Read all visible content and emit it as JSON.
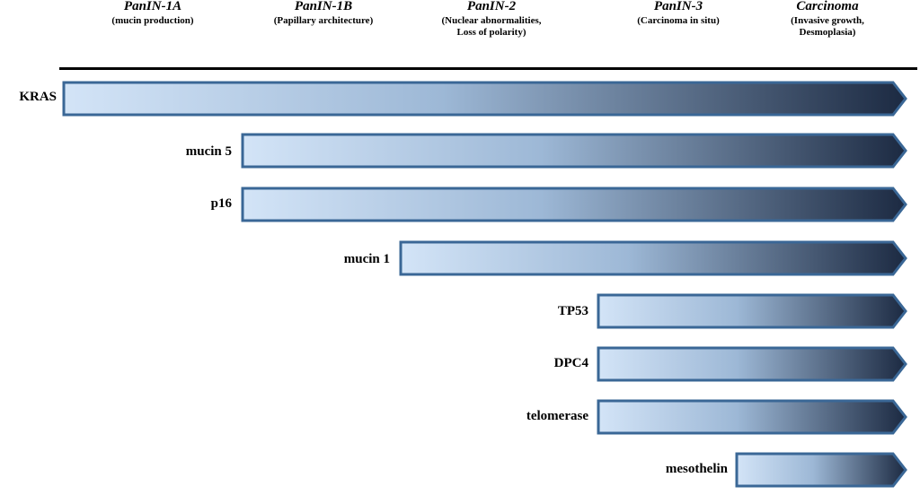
{
  "stages": [
    {
      "title": "PanIN-1A",
      "subtitle": [
        "(mucin production)"
      ]
    },
    {
      "title": "PanIN-1B",
      "subtitle": [
        "(Papillary architecture)"
      ]
    },
    {
      "title": "PanIN-2",
      "subtitle": [
        "(Nuclear abnormalities,",
        "Loss of polarity)"
      ]
    },
    {
      "title": "PanIN-3",
      "subtitle": [
        "(Carcinoma in situ)"
      ]
    },
    {
      "title": "Carcinoma",
      "subtitle": [
        "(Invasive growth,",
        "Desmoplasia)"
      ]
    }
  ],
  "markers": [
    {
      "label": "KRAS",
      "onset_stage": "PanIN-1A"
    },
    {
      "label": "mucin 5",
      "onset_stage": "PanIN-1B"
    },
    {
      "label": "p16",
      "onset_stage": "PanIN-1B"
    },
    {
      "label": "mucin 1",
      "onset_stage": "PanIN-2"
    },
    {
      "label": "TP53",
      "onset_stage": "PanIN-3"
    },
    {
      "label": "DPC4",
      "onset_stage": "PanIN-3"
    },
    {
      "label": "telomerase",
      "onset_stage": "PanIN-3"
    },
    {
      "label": "mesothelin",
      "onset_stage": "Carcinoma"
    }
  ],
  "colors": {
    "arrow_start": "#d3e4f7",
    "arrow_end": "#1c2a42",
    "arrow_border": "#3a6796"
  }
}
